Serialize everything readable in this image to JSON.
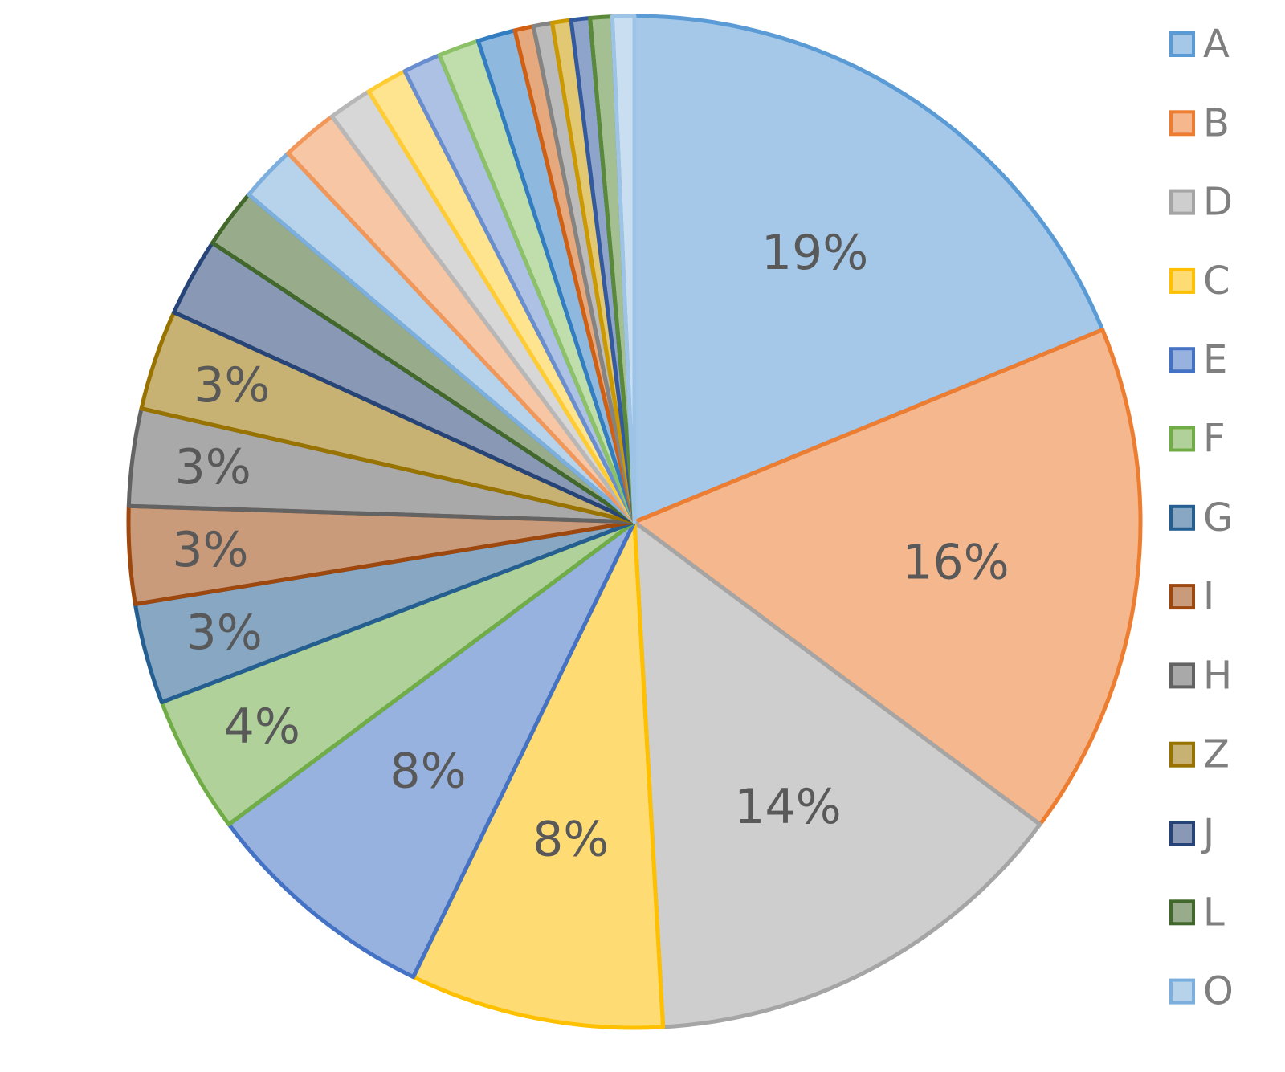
{
  "chart_data": {
    "type": "pie",
    "categories": [
      "A",
      "B",
      "D",
      "C",
      "E",
      "F",
      "G",
      "I",
      "H",
      "Z",
      "J",
      "L",
      "O",
      null,
      null,
      null,
      null,
      null,
      null,
      null,
      null,
      null,
      null,
      null,
      null
    ],
    "values": [
      18.8,
      16.4,
      13.9,
      8.1,
      7.6,
      4.4,
      3.2,
      3.1,
      3.1,
      3.2,
      2.5,
      1.9,
      1.8,
      1.8,
      1.4,
      1.3,
      1.2,
      1.3,
      1.2,
      0.6,
      0.6,
      0.6,
      0.6,
      0.7,
      0.7
    ],
    "value_labels": [
      "19%",
      "16%",
      "14%",
      "8%",
      "8%",
      "4%",
      "3%",
      "3%",
      "3%",
      "3%",
      null,
      null,
      null,
      null,
      null,
      null,
      null,
      null,
      null,
      null,
      null,
      null,
      null,
      null,
      null
    ],
    "colors": [
      "#5b9bd5",
      "#ed7d31",
      "#a5a5a5",
      "#ffc000",
      "#4472c4",
      "#70ad47",
      "#255e91",
      "#9e480e",
      "#636363",
      "#997300",
      "#264478",
      "#43682b",
      "#7cafdd",
      "#f1975a",
      "#b7b7b7",
      "#ffcd33",
      "#698ed0",
      "#8cc168",
      "#327dc2",
      "#d26012",
      "#848484",
      "#cc9a00",
      "#335aa1",
      "#5a8a39",
      "#9dc3e6"
    ],
    "legend": "right"
  }
}
